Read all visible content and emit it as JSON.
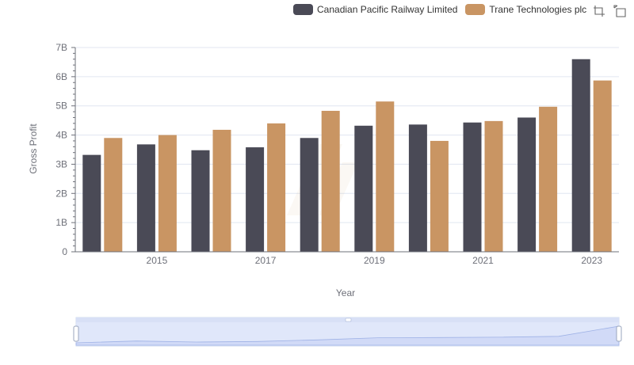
{
  "legend": {
    "items": [
      {
        "label": "Canadian Pacific Railway Limited",
        "color": "#4a4a56"
      },
      {
        "label": "Trane Technologies plc",
        "color": "#c99563"
      }
    ]
  },
  "toolbox": {
    "icons": [
      "restore-icon",
      "save-image-icon"
    ]
  },
  "chart_data": {
    "type": "bar",
    "xlabel": "Year",
    "ylabel": "Gross Profit",
    "ylim": [
      0,
      7000000000
    ],
    "y_ticks": [
      "0",
      "1B",
      "2B",
      "3B",
      "4B",
      "5B",
      "6B",
      "7B"
    ],
    "categories": [
      "2014",
      "2015",
      "2016",
      "2017",
      "2018",
      "2019",
      "2020",
      "2021",
      "2022",
      "2023"
    ],
    "x_tick_labels": [
      "2015",
      "2017",
      "2019",
      "2021",
      "2023"
    ],
    "grid": true,
    "legend_position": "top-right",
    "series": [
      {
        "name": "Canadian Pacific Railway Limited",
        "color": "#4a4a56",
        "values": [
          3320000000,
          3680000000,
          3480000000,
          3580000000,
          3900000000,
          4320000000,
          4360000000,
          4430000000,
          4600000000,
          6600000000
        ]
      },
      {
        "name": "Trane Technologies plc",
        "color": "#c99563",
        "values": [
          3900000000,
          4000000000,
          4180000000,
          4400000000,
          4830000000,
          5150000000,
          3800000000,
          4480000000,
          4970000000,
          5870000000
        ]
      }
    ]
  },
  "data_zoom": {
    "range": [
      0,
      100
    ]
  }
}
